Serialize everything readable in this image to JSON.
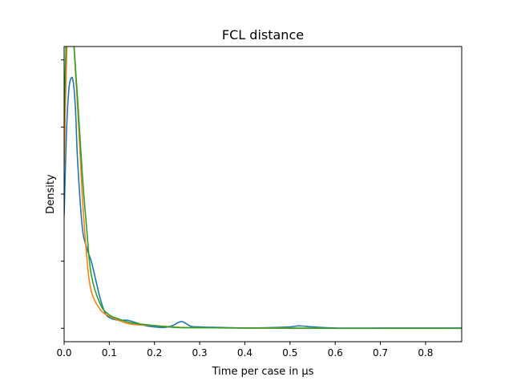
{
  "chart_data": {
    "type": "line",
    "title": "FCL distance",
    "xlabel": "Time per case in µs",
    "ylabel": "Density",
    "xlim": [
      0.0,
      0.88
    ],
    "ylim": [
      -0.05,
      1.05
    ],
    "xticks": [
      0.0,
      0.1,
      0.2,
      0.3,
      0.4,
      0.5,
      0.6,
      0.7,
      0.8
    ],
    "xtick_labels": [
      "0.0",
      "0.1",
      "0.2",
      "0.3",
      "0.4",
      "0.5",
      "0.6",
      "0.7",
      "0.8"
    ],
    "yticks": [
      0.0,
      0.25,
      0.5,
      0.75,
      1.0
    ],
    "grid": false,
    "series": [
      {
        "color": "#1f77b4",
        "x": [
          0.0,
          0.005,
          0.01,
          0.015,
          0.02,
          0.025,
          0.03,
          0.04,
          0.05,
          0.06,
          0.07,
          0.08,
          0.09,
          0.1,
          0.12,
          0.14,
          0.16,
          0.18,
          0.2,
          0.22,
          0.24,
          0.26,
          0.28,
          0.3,
          0.35,
          0.4,
          0.45,
          0.5,
          0.52,
          0.55,
          0.6,
          0.7,
          0.8,
          0.88
        ],
        "y": [
          0.42,
          0.72,
          0.88,
          0.93,
          0.92,
          0.82,
          0.62,
          0.38,
          0.3,
          0.25,
          0.18,
          0.11,
          0.06,
          0.04,
          0.03,
          0.03,
          0.02,
          0.01,
          0.005,
          0.003,
          0.01,
          0.025,
          0.008,
          0.005,
          0.003,
          0.001,
          0.002,
          0.005,
          0.009,
          0.005,
          0.001,
          0.001,
          0.001,
          0.001
        ]
      },
      {
        "color": "#ff7f0e",
        "x": [
          0.0,
          0.005,
          0.01,
          0.015,
          0.02,
          0.03,
          0.04,
          0.05,
          0.06,
          0.08,
          0.1,
          0.12,
          0.15,
          0.2,
          0.25,
          0.3,
          0.4,
          0.5,
          0.6,
          0.7,
          0.8,
          0.88
        ],
        "y": [
          0.6,
          0.98,
          1.16,
          1.17,
          1.1,
          0.82,
          0.5,
          0.27,
          0.14,
          0.07,
          0.045,
          0.03,
          0.015,
          0.01,
          0.004,
          0.002,
          0.001,
          0.001,
          0.0,
          0.0,
          0.0,
          0.0
        ]
      },
      {
        "color": "#2ca02c",
        "x": [
          0.0,
          0.005,
          0.01,
          0.015,
          0.02,
          0.03,
          0.04,
          0.05,
          0.06,
          0.08,
          0.1,
          0.12,
          0.15,
          0.2,
          0.25,
          0.3,
          0.4,
          0.5,
          0.6,
          0.7,
          0.8,
          0.88
        ],
        "y": [
          0.77,
          1.1,
          1.23,
          1.2,
          1.1,
          0.85,
          0.58,
          0.37,
          0.2,
          0.09,
          0.05,
          0.035,
          0.02,
          0.01,
          0.003,
          0.002,
          0.001,
          0.0,
          0.0,
          0.0,
          0.0,
          0.0
        ]
      }
    ]
  }
}
